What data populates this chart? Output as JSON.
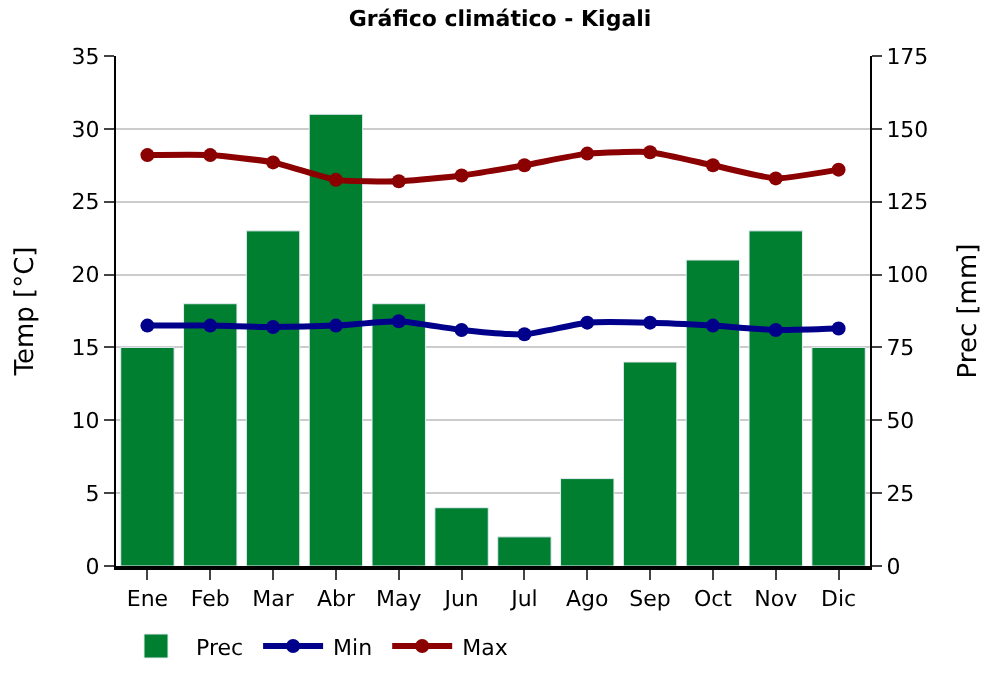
{
  "chart_data": {
    "type": "line",
    "title": "Gráfico climático - Kigali",
    "ylabel": "Temp [°C]",
    "y2label": "Prec [mm]",
    "categories": [
      "Ene",
      "Feb",
      "Mar",
      "Abr",
      "May",
      "Jun",
      "Jul",
      "Ago",
      "Sep",
      "Oct",
      "Nov",
      "Dic"
    ],
    "series": [
      {
        "name": "Prec",
        "type": "bar",
        "axis": "y2",
        "color": "#007f31",
        "values": [
          75,
          90,
          115,
          155,
          90,
          20,
          10,
          30,
          70,
          105,
          115,
          75
        ]
      },
      {
        "name": "Min",
        "color": "#00008b",
        "values": [
          16.5,
          16.5,
          16.4,
          16.5,
          16.8,
          16.2,
          15.9,
          16.7,
          16.7,
          16.5,
          16.2,
          16.3
        ]
      },
      {
        "name": "Max",
        "color": "#8b0000",
        "values": [
          28.2,
          28.2,
          27.7,
          26.5,
          26.4,
          26.8,
          27.5,
          28.3,
          28.4,
          27.5,
          26.6,
          27.2
        ]
      }
    ],
    "ylim": [
      0,
      35
    ],
    "yticks": [
      0,
      5,
      10,
      15,
      20,
      25,
      30,
      35
    ],
    "y2lim": [
      0,
      175
    ],
    "y2ticks": [
      0,
      25,
      50,
      75,
      100,
      125,
      150,
      175
    ],
    "grid": "y",
    "legend": "bottom",
    "marker": "circle",
    "line_style": "solid"
  }
}
